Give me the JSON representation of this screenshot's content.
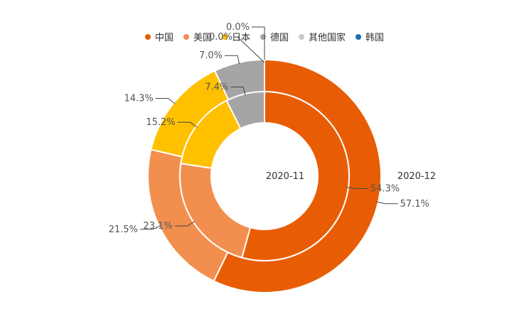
{
  "chart_data": {
    "type": "pie",
    "variant": "nested-donut",
    "legend_position": "top",
    "legend": [
      "中国",
      "美国",
      "日本",
      "德国",
      "其他国家",
      "韩国"
    ],
    "colors": [
      "#E85D04",
      "#F28F4F",
      "#FFC000",
      "#A5A5A5",
      "#C9C9C9",
      "#1F6EA8"
    ],
    "rings": [
      {
        "name": "2020-11",
        "label": "2020-11",
        "values": [
          54.3,
          23.1,
          15.2,
          7.4,
          0.0,
          0.0
        ],
        "data_labels": [
          "54.3%",
          "23.1%",
          "15.2%",
          "7.4%",
          "",
          ""
        ]
      },
      {
        "name": "2020-12",
        "label": "2020-12",
        "values": [
          57.1,
          21.5,
          14.3,
          7.0,
          0.0,
          0.0
        ],
        "data_labels": [
          "57.1%",
          "21.5%",
          "14.3%",
          "7.0%",
          "0.0%",
          "0.0%"
        ]
      }
    ]
  }
}
